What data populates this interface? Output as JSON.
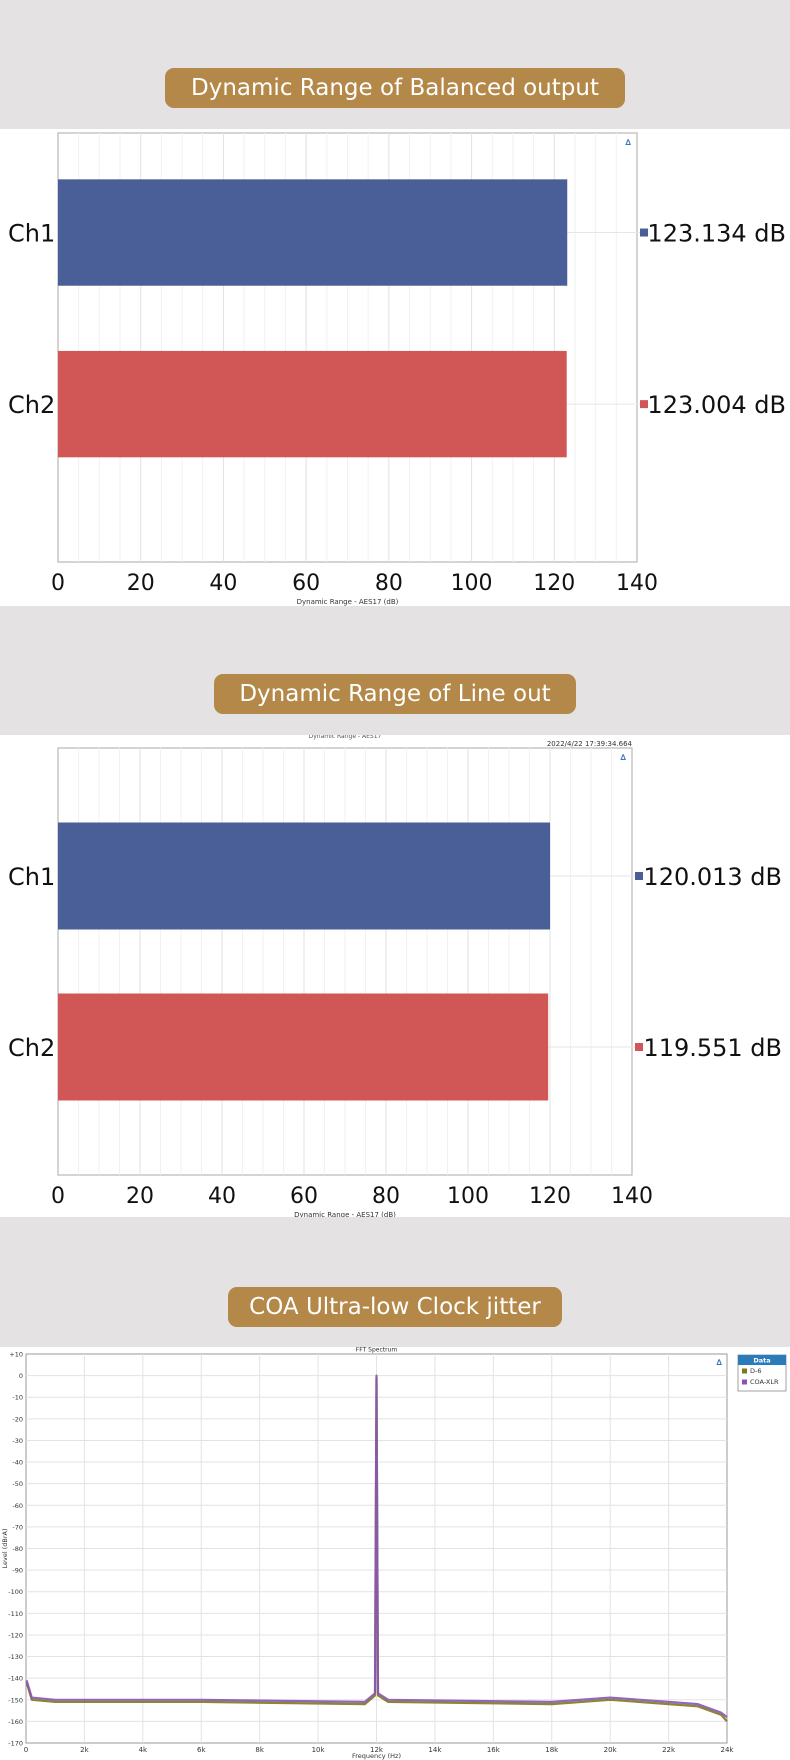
{
  "sections": [
    {
      "title": "Dynamic Range of Balanced output"
    },
    {
      "title": "Dynamic Range of Line out"
    },
    {
      "title": "COA Ultra-low Clock jitter"
    }
  ],
  "colors": {
    "pill": "#b38849",
    "ch1": "#4a5f97",
    "ch2": "#d05756",
    "d6": "#7c7a18",
    "coa_xlr": "#8a54b4",
    "legend_header": "#2a7bb9"
  },
  "chart_data": [
    {
      "type": "bar",
      "orientation": "horizontal",
      "title": "",
      "stamp": "",
      "categories": [
        "Ch1",
        "Ch2"
      ],
      "values": [
        123.134,
        123.004
      ],
      "value_labels": [
        "123.134 dB",
        "123.004 dB"
      ],
      "xlabel": "Dynamic Range - AES17 (dB)",
      "xlim": [
        0,
        140
      ],
      "xticks": [
        0,
        20,
        40,
        60,
        80,
        100,
        120,
        140
      ],
      "grid": true
    },
    {
      "type": "bar",
      "orientation": "horizontal",
      "title": "Dynamic Range - AES17",
      "stamp": "2022/4/22 17:39:34.664",
      "categories": [
        "Ch1",
        "Ch2"
      ],
      "values": [
        120.013,
        119.551
      ],
      "value_labels": [
        "120.013 dB",
        "119.551 dB"
      ],
      "xlabel": "Dynamic Range - AES17 (dB)",
      "xlim": [
        0,
        140
      ],
      "xticks": [
        0,
        20,
        40,
        60,
        80,
        100,
        120,
        140
      ],
      "grid": true
    },
    {
      "type": "line",
      "title": "FFT Spectrum",
      "xlabel": "Frequency (Hz)",
      "ylabel": "Level (dBrA)",
      "xlim": [
        0,
        24000
      ],
      "ylim": [
        -170,
        10
      ],
      "xticks": [
        0,
        2000,
        4000,
        6000,
        8000,
        10000,
        12000,
        14000,
        16000,
        18000,
        20000,
        22000,
        24000
      ],
      "xtick_labels": [
        "0",
        "2k",
        "4k",
        "6k",
        "8k",
        "10k",
        "12k",
        "14k",
        "16k",
        "18k",
        "20k",
        "22k",
        "24k"
      ],
      "yticks": [
        10,
        0,
        -10,
        -20,
        -30,
        -40,
        -50,
        -60,
        -70,
        -80,
        -90,
        -100,
        -110,
        -120,
        -130,
        -140,
        -150,
        -160,
        -170
      ],
      "ytick_labels": [
        "+10",
        "0",
        "-10",
        "-20",
        "-30",
        "-40",
        "-50",
        "-60",
        "-70",
        "-80",
        "-90",
        "-100",
        "-110",
        "-120",
        "-130",
        "-140",
        "-150",
        "-160",
        "-170"
      ],
      "legend_title": "Data",
      "legend_position": "right",
      "series": [
        {
          "name": "D-6",
          "x": [
            20,
            200,
            1000,
            6000,
            11600,
            11950,
            12000,
            12050,
            12400,
            18000,
            20000,
            22000,
            23000,
            23800,
            24000
          ],
          "y": [
            -142,
            -150,
            -151,
            -151,
            -152,
            -148,
            -1,
            -148,
            -151,
            -152,
            -150,
            -152,
            -153,
            -157,
            -160
          ]
        },
        {
          "name": "COA-XLR",
          "x": [
            20,
            200,
            1000,
            6000,
            11600,
            11950,
            12000,
            12050,
            12400,
            18000,
            20000,
            22000,
            23000,
            23800,
            24000
          ],
          "y": [
            -141,
            -149,
            -150,
            -150,
            -151,
            -147,
            0,
            -147,
            -150,
            -151,
            -149,
            -151,
            -152,
            -156,
            -158
          ]
        }
      ],
      "grid": true
    }
  ]
}
